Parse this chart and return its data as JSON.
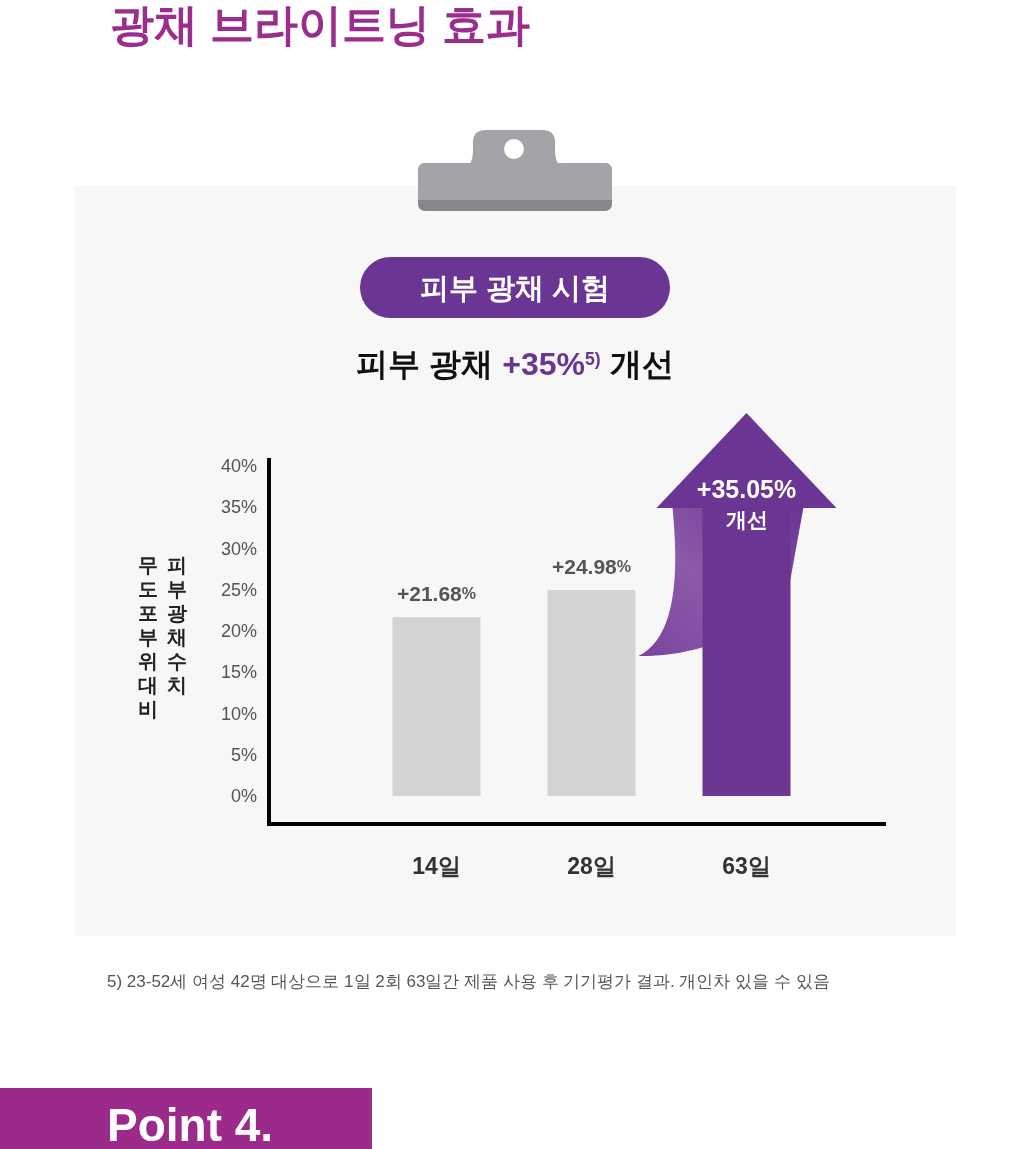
{
  "chart_data": {
    "type": "bar",
    "title": "광채 브라이트닝 효과",
    "subtitle": "피부 광채 시험",
    "ylabel": "피부 광채수치\n무도포 부위 대비",
    "categories": [
      "14일",
      "28일",
      "63일"
    ],
    "values": [
      21.68,
      24.98,
      35.05
    ],
    "colors": [
      "#d3d3d3",
      "#d3d3d3",
      "#6a3593"
    ],
    "value_labels": [
      "+21.68%",
      "+24.98%",
      "+35.05%\n개선"
    ],
    "ylim": [
      -3.4,
      41
    ],
    "yticks": [
      {
        "value": 0,
        "label": "0%"
      },
      {
        "value": 5,
        "label": "5%"
      },
      {
        "value": 10,
        "label": "10%"
      },
      {
        "value": 15,
        "label": "15%"
      },
      {
        "value": 20,
        "label": "20%"
      },
      {
        "value": 25,
        "label": "25%"
      },
      {
        "value": 30,
        "label": "30%"
      },
      {
        "value": 35,
        "label": "35%"
      },
      {
        "value": 40,
        "label": "40%"
      }
    ],
    "annotations": [
      "피부 광채 +35%$^{5)}$ 개선",
      "5) 23-52세 여성 42명 대상으로 1일 2회 63일간 제품 사용 후 기기평가 결과. 개인차 있을 수 있음",
      "Point 4."
    ]
  }
}
